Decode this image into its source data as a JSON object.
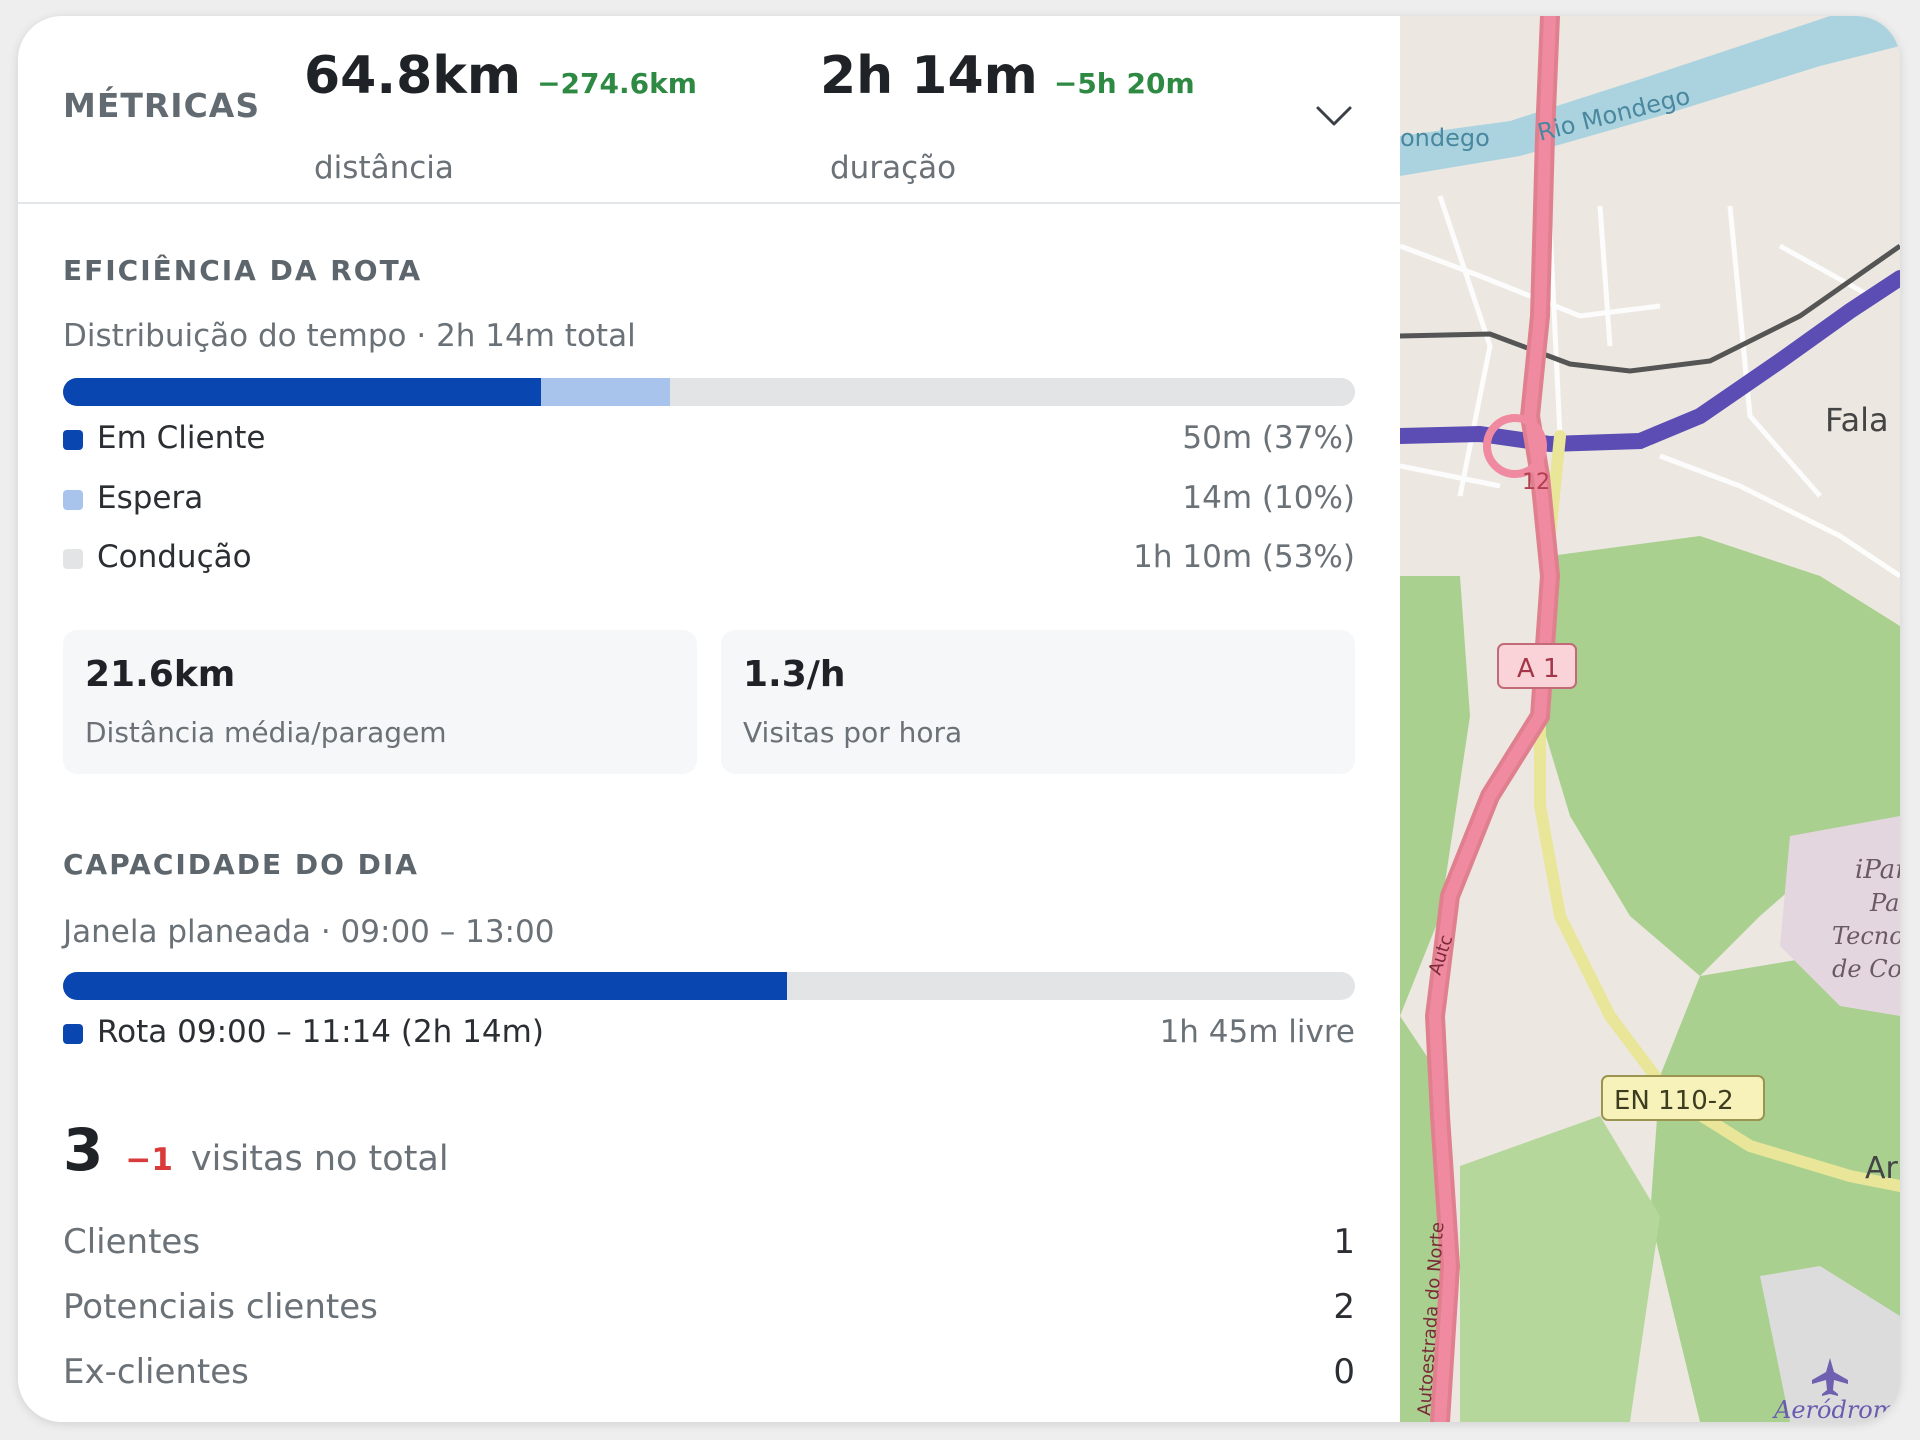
{
  "header": {
    "title": "MÉTRICAS",
    "distance": {
      "value": "64.8km",
      "delta": "−274.6km",
      "label": "distância"
    },
    "duration": {
      "value": "2h 14m",
      "delta": "−5h 20m",
      "label": "duração"
    },
    "toggle_icon": "chevron-down-icon"
  },
  "efficiency": {
    "title": "EFICIÊNCIA DA ROTA",
    "subtitle": "Distribuição do tempo · 2h 14m total",
    "segments": [
      {
        "name": "Em Cliente",
        "value": "50m (37%)",
        "fraction": 0.37,
        "color": "#0a46b0"
      },
      {
        "name": "Espera",
        "value": "14m (10%)",
        "fraction": 0.1,
        "color": "#a9c4ec"
      },
      {
        "name": "Condução",
        "value": "1h 10m (53%)",
        "fraction": 0.53,
        "color": "#e2e4e6"
      }
    ]
  },
  "stats": [
    {
      "value": "21.6km",
      "label": "Distância média/paragem"
    },
    {
      "value": "1.3/h",
      "label": "Visitas por hora"
    }
  ],
  "capacity": {
    "title": "CAPACIDADE DO DIA",
    "subtitle": "Janela planeada · 09:00 – 13:00",
    "route_label": "Rota 09:00 – 11:14 (2h 14m)",
    "free_label": "1h 45m livre",
    "fill_fraction": 0.56,
    "color": "#0a46b0"
  },
  "visits": {
    "total": "3",
    "delta": "−1",
    "label": "visitas no total",
    "rows": [
      {
        "name": "Clientes",
        "count": "1"
      },
      {
        "name": "Potenciais clientes",
        "count": "2"
      },
      {
        "name": "Ex-clientes",
        "count": "0"
      }
    ]
  },
  "map": {
    "labels": {
      "river_left": "ondego",
      "river": "Rio Mondego",
      "town": "Fala",
      "road_12": "12",
      "a1": "A 1",
      "en": "EN 110-2",
      "auto_short": "Autc",
      "auto_long": "Autoestrada do Norte",
      "ar": "Ar",
      "iparq1": "iParq",
      "iparq2": "Parq",
      "iparq3": "Tecnolo",
      "iparq4": "de Coir",
      "aero": "Aeródromo"
    },
    "airport_icon": "airplane-icon"
  }
}
